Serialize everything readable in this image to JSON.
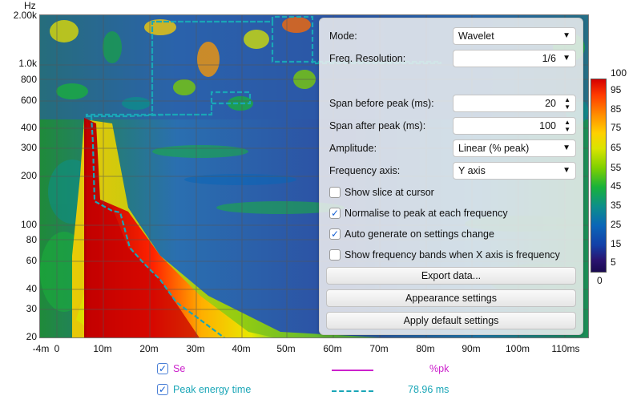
{
  "plot": {
    "y_unit": "Hz",
    "y_ticks": [
      "2.00k",
      "1.0k",
      "800",
      "600",
      "400",
      "300",
      "200",
      "100",
      "80",
      "60",
      "40",
      "30",
      "20"
    ],
    "x_ticks": [
      "-4m",
      "0",
      "10m",
      "20m",
      "30m",
      "40m",
      "50m",
      "60m",
      "70m",
      "80m",
      "90m",
      "100m",
      "110ms"
    ]
  },
  "colorbar": {
    "ticks": [
      "100",
      "95",
      "85",
      "75",
      "65",
      "55",
      "45",
      "35",
      "25",
      "15",
      "5",
      "0"
    ],
    "colors": [
      "#d60000",
      "#ff8a00",
      "#ffd100",
      "#7fd000",
      "#19b23a",
      "#0a66b8",
      "#2a1470"
    ]
  },
  "panel": {
    "mode": {
      "label": "Mode:",
      "value": "Wavelet"
    },
    "freq_resolution": {
      "label": "Freq. Resolution:",
      "value": "1/6"
    },
    "span_before": {
      "label": "Span before peak (ms):",
      "value": "20"
    },
    "span_after": {
      "label": "Span after peak (ms):",
      "value": "100"
    },
    "amplitude": {
      "label": "Amplitude:",
      "value": "Linear (% peak)"
    },
    "frequency_axis": {
      "label": "Frequency axis:",
      "value": "Y axis"
    },
    "checkboxes": [
      {
        "label": "Show slice at cursor",
        "checked": false,
        "mark": ""
      },
      {
        "label": "Normalise to peak at each frequency",
        "checked": true,
        "mark": "✓"
      },
      {
        "label": "Auto generate on settings change",
        "checked": true,
        "mark": "✓"
      },
      {
        "label": "Show frequency bands when X axis is frequency",
        "checked": false,
        "mark": ""
      }
    ],
    "buttons": {
      "export": "Export data...",
      "appearance": "Appearance settings",
      "defaults": "Apply default settings"
    }
  },
  "legend": [
    {
      "mark": "✓",
      "name": "Se",
      "value": "%pk",
      "color": "#cc22cc",
      "style": "solid"
    },
    {
      "mark": "✓",
      "name": "Peak energy time",
      "value": "78.96 ms",
      "color": "#1aa6b7",
      "style": "dashed"
    }
  ]
}
